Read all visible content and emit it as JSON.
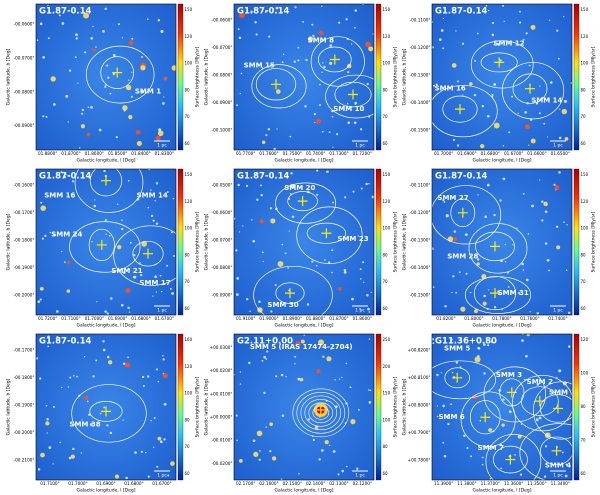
{
  "panels": [
    {
      "title": "G1.87-0.14",
      "sources": [
        "SMM 1"
      ],
      "xticks": [
        "01.8800°",
        "01.8700°",
        "01.8600°",
        "01.8500°",
        "01.8400°",
        "01.8300°"
      ],
      "yticks": [
        "-00.0600°",
        "-00.0700°",
        "-00.0800°",
        "-00.0900°"
      ],
      "cbticks": [
        "150",
        "120",
        "100",
        "80",
        "70",
        "60"
      ],
      "xlabel": "Galactic longitude, l [Deg]",
      "ylabel": "Galactic latitude, b [Deg]",
      "cblabel": "Surface brightness [MJy/sr]",
      "scalebar": "1 pc"
    },
    {
      "title": "G1.87-0.14",
      "sources": [
        "SMM 8",
        "SMM 15",
        "SMM 10"
      ],
      "xticks": [
        "01.7700°",
        "01.7600°",
        "01.7500°",
        "01.7400°",
        "01.7300°",
        "01.7200°"
      ],
      "yticks": [
        "-00.0600°",
        "-00.0700°",
        "-00.0800°",
        "-00.0900°",
        "-00.1000°"
      ],
      "cbticks": [
        "150",
        "120",
        "100",
        "80",
        "70",
        "60"
      ],
      "xlabel": "Galactic longitude, l [Deg]",
      "ylabel": "Galactic latitude, b [Deg]",
      "cblabel": "Surface brightness [MJy/sr]",
      "scalebar": "1 pc"
    },
    {
      "title": "G1.87-0.14",
      "sources": [
        "SMM 12",
        "SMM 16",
        "SMM 14"
      ],
      "xticks": [
        "01.7000°",
        "01.6900°",
        "01.6800°",
        "01.6700°",
        "01.6600°",
        "01.6500°"
      ],
      "yticks": [
        "-00.1100°",
        "-00.1200°",
        "-00.1300°",
        "-00.1400°",
        "-00.1500°"
      ],
      "cbticks": [
        "150",
        "120",
        "100",
        "80",
        "70",
        "60"
      ],
      "xlabel": "Galactic longitude, l [Deg]",
      "ylabel": "Galactic latitude, b [Deg]",
      "cblabel": "Surface brightness [MJy/sr]",
      "scalebar": "1 pc"
    },
    {
      "title": "G1.87-0.14",
      "sources": [
        "SMM 16",
        "SMM 14",
        "SMM 24",
        "SMM 21",
        "SMM 17"
      ],
      "xticks": [
        "01.7200°",
        "01.7100°",
        "01.7000°",
        "01.6900°",
        "01.6800°",
        "01.6700°"
      ],
      "yticks": [
        "-00.1600°",
        "-00.1700°",
        "-00.1800°",
        "-00.1900°",
        "-00.2000°"
      ],
      "cbticks": [
        "150",
        "120",
        "100",
        "80",
        "70",
        "60"
      ],
      "xlabel": "Galactic longitude, l [Deg]",
      "ylabel": "Galactic latitude, b [Deg]",
      "cblabel": "Surface brightness [MJy/sr]",
      "scalebar": "1 pc"
    },
    {
      "title": "G1.87-0.14",
      "sources": [
        "SMM 20",
        "SMM 23",
        "SMM 30"
      ],
      "xticks": [
        "01.9100°",
        "01.9000°",
        "01.8900°",
        "01.8800°",
        "01.8700°",
        "01.8600°"
      ],
      "yticks": [
        "-00.0500°",
        "-00.0600°",
        "-00.0700°",
        "-00.0800°",
        "-00.0900°"
      ],
      "cbticks": [
        "150",
        "120",
        "100",
        "80",
        "70",
        "60"
      ],
      "xlabel": "Galactic longitude, l [Deg]",
      "ylabel": "Galactic latitude, b [Deg]",
      "cblabel": "Surface brightness [MJy/sr]",
      "scalebar": "1 pc"
    },
    {
      "title": "G1.87-0.14",
      "sources": [
        "SMM 27",
        "SMM 28",
        "SMM 31"
      ],
      "xticks": [
        "01.8200°",
        "01.8000°",
        "01.7800°",
        "01.7600°",
        "01.7400°"
      ],
      "yticks": [
        "-00.1100°",
        "-00.1200°",
        "-00.1300°",
        "-00.1400°",
        "-00.1500°"
      ],
      "cbticks": [
        "150",
        "120",
        "100",
        "80",
        "70",
        "60"
      ],
      "xlabel": "Galactic longitude, l [Deg]",
      "ylabel": "Galactic latitude, b [Deg]",
      "cblabel": "Surface brightness [MJy/sr]",
      "scalebar": "1 pc"
    },
    {
      "title": "G1.87-0.14",
      "sources": [
        "SMM 38"
      ],
      "xticks": [
        "01.7100°",
        "01.7000°",
        "01.6900°",
        "01.6800°",
        "01.6700°"
      ],
      "yticks": [
        "-00.1700°",
        "-00.1800°",
        "-00.1900°",
        "-00.2000°",
        "-00.2100°"
      ],
      "cbticks": [
        "160",
        "120",
        "100",
        "80",
        "70",
        "60"
      ],
      "xlabel": "Galactic longitude, l [Deg]",
      "ylabel": "Galactic latitude, b [Deg]",
      "cblabel": "Surface brightness [MJy/sr]",
      "scalebar": "1 pc"
    },
    {
      "title": "G2.11+0.00",
      "sources": [
        "SMM 5 (IRAS 17474-2704)"
      ],
      "xticks": [
        "02.1700°",
        "02.1600°",
        "02.1500°",
        "02.1400°",
        "02.1300°",
        "02.1200°"
      ],
      "yticks": [
        "+00.0300°",
        "+00.0200°",
        "+00.0100°",
        "+00.0000°",
        "-00.0100°",
        "-00.0200°"
      ],
      "cbticks": [
        "250",
        "200",
        "150",
        "100",
        "80",
        "60"
      ],
      "xlabel": "Galactic longitude, l [Deg]",
      "ylabel": "Galactic latitude, b [Deg]",
      "cblabel": "Surface brightness [MJy/sr]",
      "scalebar": "1 pc"
    },
    {
      "title": "G11.36+0.80",
      "sources": [
        "SMM 5",
        "SMM 3",
        "SMM 2",
        "SMM 1",
        "SMM 6",
        "SMM 7",
        "SMM 4"
      ],
      "xticks": [
        "11.3900°",
        "11.3800°",
        "11.3700°",
        "11.3600°",
        "11.3500°",
        "11.3400°"
      ],
      "yticks": [
        "+00.8200°",
        "+00.8100°",
        "+00.8000°",
        "+00.7900°",
        "+00.7800°"
      ],
      "cbticks": [
        "120",
        "100",
        "80",
        "70",
        "60"
      ],
      "xlabel": "Galactic longitude, l [Deg]",
      "ylabel": "Galactic latitude, b [Deg]",
      "cblabel": "Surface brightness [MJy/sr]",
      "scalebar": "1 pc"
    }
  ]
}
